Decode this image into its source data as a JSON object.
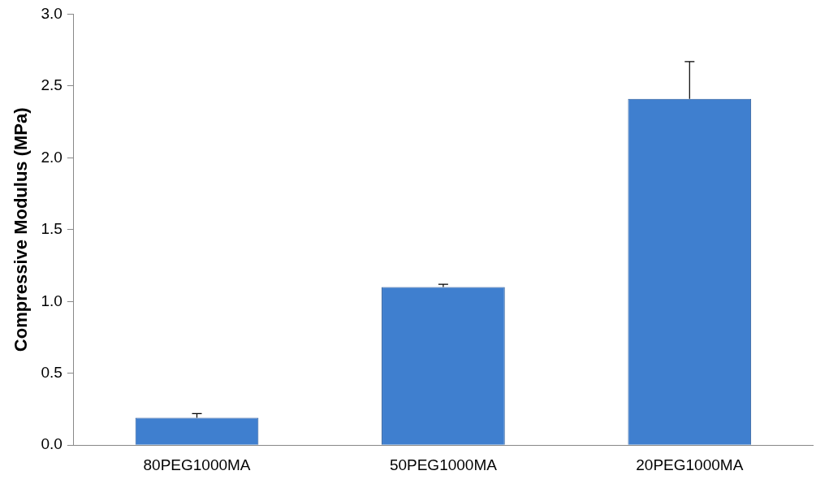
{
  "chart_data": {
    "type": "bar",
    "ylabel": "Compressive Modulus (MPa)",
    "categories": [
      "80PEG1000MA",
      "50PEG1000MA",
      "20PEG1000MA"
    ],
    "values": [
      0.19,
      1.1,
      2.41
    ],
    "errors": [
      [
        0.19,
        0.22
      ],
      [
        1.1,
        1.12
      ],
      [
        2.41,
        2.67
      ]
    ],
    "color": "#3f7fcf",
    "ylim": [
      0,
      3
    ],
    "yticks": [
      {
        "value": 0,
        "label": "0.0"
      },
      {
        "value": 0.5,
        "label": "0.5"
      },
      {
        "value": 1,
        "label": "1.0"
      },
      {
        "value": 1.5,
        "label": "1.5"
      },
      {
        "value": 2,
        "label": "2.0"
      },
      {
        "value": 2.5,
        "label": "2.5"
      },
      {
        "value": 3,
        "label": "3.0"
      }
    ],
    "grid": false,
    "legend": false
  }
}
